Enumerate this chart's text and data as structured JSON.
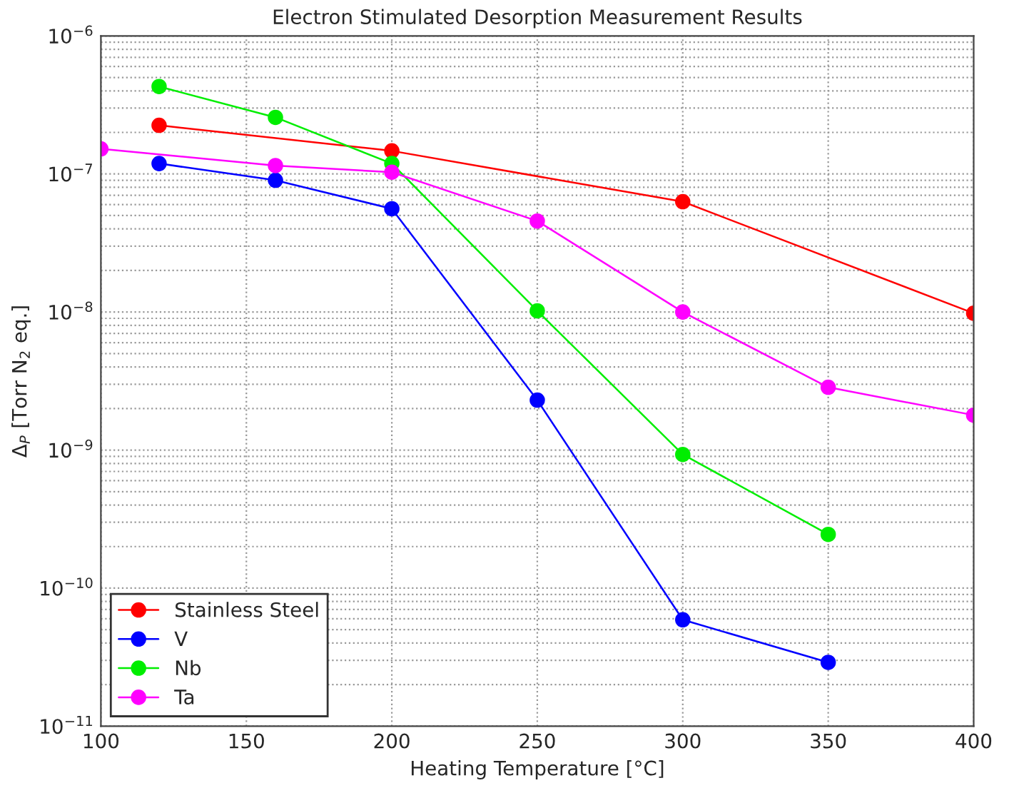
{
  "chart_data": {
    "type": "line",
    "title": "Electron Stimulated Desorption Measurement Results",
    "xlabel": "Heating Temperature [°C]",
    "ylabel": "Δ$_{P}$ [Torr N$_{2}$ eq.]",
    "series": [
      {
        "name": "Stainless Steel",
        "color": "#ff0000",
        "x": [
          120,
          200,
          300,
          400
        ],
        "values": [
          2.25e-07,
          1.47e-07,
          6.3e-08,
          9.8e-09
        ]
      },
      {
        "name": "V",
        "color": "#0000ff",
        "x": [
          120,
          160,
          200,
          250,
          300,
          350
        ],
        "values": [
          1.19e-07,
          9e-08,
          5.6e-08,
          2.3e-09,
          5.9e-11,
          2.9e-11
        ]
      },
      {
        "name": "Nb",
        "color": "#00ee00",
        "x": [
          120,
          160,
          200,
          250,
          300,
          350
        ],
        "values": [
          4.3e-07,
          2.57e-07,
          1.19e-07,
          1.02e-08,
          9.3e-10,
          2.45e-10
        ]
      },
      {
        "name": "Ta",
        "color": "#ff00ff",
        "x": [
          100,
          160,
          200,
          250,
          300,
          350,
          400
        ],
        "values": [
          1.52e-07,
          1.15e-07,
          1.03e-07,
          4.56e-08,
          1e-08,
          2.85e-09,
          1.79e-09
        ]
      }
    ],
    "log": "y",
    "xlim": [
      100,
      400
    ],
    "xticks": [
      100,
      150,
      200,
      250,
      300,
      350,
      400
    ],
    "ylim": [
      1e-11,
      1e-06
    ],
    "yticks": [
      {
        "value": 1e-11,
        "label": "10$^{−11}$"
      },
      {
        "value": 1e-10,
        "label": "10$^{−10}$"
      },
      {
        "value": 1e-09,
        "label": "10$^{−9}$"
      },
      {
        "value": 1e-08,
        "label": "10$^{−8}$"
      },
      {
        "value": 1e-07,
        "label": "10$^{−7}$"
      },
      {
        "value": 1e-06,
        "label": "10$^{−6}$"
      }
    ],
    "grid": true,
    "legend": "bottom left",
    "marker": "circle",
    "line_style": "solid"
  }
}
